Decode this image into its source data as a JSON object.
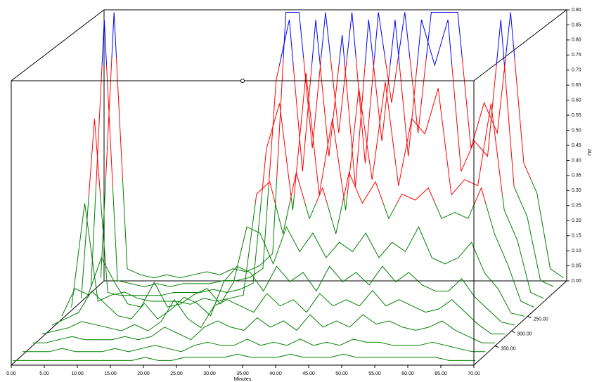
{
  "chart_data": {
    "type": "surface3d",
    "xlabel": "Minutes",
    "ylabel": "AU",
    "x": [
      0,
      2,
      4,
      6,
      8,
      10,
      12,
      14,
      16,
      18,
      20,
      22,
      24,
      26,
      28,
      30,
      32,
      34,
      36,
      38,
      40,
      42,
      44,
      46,
      48,
      50,
      52,
      54,
      56,
      58,
      60,
      62,
      64,
      66,
      68,
      70
    ],
    "xlim": [
      0,
      70
    ],
    "xticks": [
      {
        "value": 0,
        "label": "0.00"
      },
      {
        "value": 5,
        "label": "5.00"
      },
      {
        "value": 10,
        "label": "10.00"
      },
      {
        "value": 15,
        "label": "15.00"
      },
      {
        "value": 20,
        "label": "20.00"
      },
      {
        "value": 25,
        "label": "25.00"
      },
      {
        "value": 30,
        "label": "30.00"
      },
      {
        "value": 35,
        "label": "35.00"
      },
      {
        "value": 40,
        "label": "40.00"
      },
      {
        "value": 45,
        "label": "45.00"
      },
      {
        "value": 50,
        "label": "50.00"
      },
      {
        "value": 55,
        "label": "55.00"
      },
      {
        "value": 60,
        "label": "60.00"
      },
      {
        "value": 65,
        "label": "65.00"
      },
      {
        "value": 70,
        "label": "70.00"
      }
    ],
    "ylim": [
      0,
      0.9
    ],
    "yticks": [
      {
        "value": 0,
        "label": "0.00"
      },
      {
        "value": 0.05,
        "label": "0.05"
      },
      {
        "value": 0.1,
        "label": "0.10"
      },
      {
        "value": 0.15,
        "label": "0.15"
      },
      {
        "value": 0.2,
        "label": "0.20"
      },
      {
        "value": 0.25,
        "label": "0.25"
      },
      {
        "value": 0.3,
        "label": "0.30"
      },
      {
        "value": 0.35,
        "label": "0.35"
      },
      {
        "value": 0.4,
        "label": "0.40"
      },
      {
        "value": 0.45,
        "label": "0.45"
      },
      {
        "value": 0.5,
        "label": "0.50"
      },
      {
        "value": 0.55,
        "label": "0.55"
      },
      {
        "value": 0.6,
        "label": "0.60"
      },
      {
        "value": 0.65,
        "label": "0.65"
      },
      {
        "value": 0.7,
        "label": "0.70"
      },
      {
        "value": 0.75,
        "label": "0.75"
      },
      {
        "value": 0.8,
        "label": "0.80"
      },
      {
        "value": 0.85,
        "label": "0.85"
      },
      {
        "value": 0.9,
        "label": "0.90"
      }
    ],
    "zlim": [
      130,
      415
    ],
    "zticks": [
      {
        "value": 250,
        "label": "250.00"
      },
      {
        "value": 300,
        "label": "300.00"
      },
      {
        "value": 350,
        "label": "350.00"
      }
    ],
    "color_bands": [
      {
        "max": 0.35,
        "color": "#008000"
      },
      {
        "max": 0.75,
        "color": "#ff0000"
      },
      {
        "max": 0.9,
        "color": "#0000ff"
      }
    ],
    "series": [
      {
        "z": 140,
        "values": [
          0.02,
          0.9,
          0.05,
          0.03,
          0.02,
          0.03,
          0.02,
          0.03,
          0.04,
          0.03,
          0.05,
          0.04,
          0.06,
          0.1,
          0.9,
          0.9,
          0.45,
          0.9,
          0.5,
          0.9,
          0.4,
          0.9,
          0.6,
          0.9,
          0.5,
          0.9,
          0.9,
          0.9,
          0.45,
          0.6,
          0.5,
          0.9,
          0.4,
          0.3,
          0.05,
          0.02
        ]
      },
      {
        "z": 170,
        "values": [
          0.02,
          0.9,
          0.04,
          0.03,
          0.02,
          0.03,
          0.02,
          0.03,
          0.03,
          0.03,
          0.04,
          0.04,
          0.05,
          0.08,
          0.7,
          0.9,
          0.4,
          0.9,
          0.45,
          0.85,
          0.35,
          0.9,
          0.5,
          0.9,
          0.45,
          0.9,
          0.75,
          0.9,
          0.4,
          0.5,
          0.45,
          0.9,
          0.35,
          0.25,
          0.04,
          0.02
        ]
      },
      {
        "z": 200,
        "values": [
          0.01,
          0.6,
          0.03,
          0.02,
          0.02,
          0.02,
          0.02,
          0.03,
          0.03,
          0.03,
          0.04,
          0.03,
          0.04,
          0.06,
          0.5,
          0.65,
          0.3,
          0.75,
          0.35,
          0.6,
          0.3,
          0.7,
          0.4,
          0.72,
          0.38,
          0.6,
          0.55,
          0.7,
          0.35,
          0.4,
          0.38,
          0.65,
          0.3,
          0.2,
          0.03,
          0.01
        ]
      },
      {
        "z": 230,
        "values": [
          0.01,
          0.35,
          0.03,
          0.05,
          0.06,
          0.04,
          0.03,
          0.03,
          0.03,
          0.02,
          0.04,
          0.03,
          0.04,
          0.05,
          0.38,
          0.42,
          0.25,
          0.45,
          0.3,
          0.4,
          0.25,
          0.45,
          0.35,
          0.42,
          0.3,
          0.38,
          0.36,
          0.4,
          0.3,
          0.32,
          0.3,
          0.4,
          0.25,
          0.15,
          0.03,
          0.01
        ]
      },
      {
        "z": 260,
        "values": [
          0.01,
          0.1,
          0.08,
          0.2,
          0.12,
          0.05,
          0.04,
          0.12,
          0.04,
          0.05,
          0.08,
          0.1,
          0.05,
          0.12,
          0.3,
          0.28,
          0.18,
          0.3,
          0.22,
          0.28,
          0.2,
          0.25,
          0.22,
          0.28,
          0.2,
          0.25,
          0.22,
          0.3,
          0.2,
          0.18,
          0.2,
          0.25,
          0.15,
          0.1,
          0.02,
          0.01
        ]
      },
      {
        "z": 290,
        "values": [
          0.01,
          0.03,
          0.05,
          0.12,
          0.08,
          0.04,
          0.03,
          0.08,
          0.03,
          0.06,
          0.1,
          0.08,
          0.04,
          0.15,
          0.2,
          0.18,
          0.12,
          0.2,
          0.15,
          0.18,
          0.12,
          0.2,
          0.15,
          0.18,
          0.14,
          0.2,
          0.15,
          0.18,
          0.14,
          0.12,
          0.12,
          0.16,
          0.1,
          0.06,
          0.02,
          0.01
        ]
      },
      {
        "z": 320,
        "values": [
          0.01,
          0.02,
          0.03,
          0.05,
          0.04,
          0.03,
          0.02,
          0.04,
          0.02,
          0.05,
          0.12,
          0.06,
          0.03,
          0.1,
          0.12,
          0.1,
          0.08,
          0.14,
          0.1,
          0.12,
          0.08,
          0.14,
          0.1,
          0.12,
          0.1,
          0.15,
          0.1,
          0.12,
          0.1,
          0.08,
          0.09,
          0.12,
          0.08,
          0.04,
          0.01,
          0.01
        ]
      },
      {
        "z": 350,
        "values": [
          0.01,
          0.01,
          0.02,
          0.03,
          0.02,
          0.02,
          0.02,
          0.03,
          0.02,
          0.03,
          0.06,
          0.04,
          0.02,
          0.06,
          0.08,
          0.06,
          0.05,
          0.09,
          0.06,
          0.08,
          0.05,
          0.1,
          0.06,
          0.08,
          0.06,
          0.1,
          0.07,
          0.08,
          0.06,
          0.05,
          0.06,
          0.08,
          0.05,
          0.03,
          0.01,
          0.01
        ]
      },
      {
        "z": 380,
        "values": [
          0.01,
          0.01,
          0.01,
          0.02,
          0.01,
          0.01,
          0.01,
          0.02,
          0.01,
          0.02,
          0.03,
          0.02,
          0.01,
          0.03,
          0.04,
          0.03,
          0.03,
          0.05,
          0.03,
          0.04,
          0.03,
          0.05,
          0.03,
          0.04,
          0.03,
          0.05,
          0.04,
          0.04,
          0.03,
          0.03,
          0.03,
          0.04,
          0.03,
          0.02,
          0.01,
          0.01
        ]
      },
      {
        "z": 410,
        "values": [
          0.01,
          0.01,
          0.01,
          0.01,
          0.01,
          0.01,
          0.01,
          0.01,
          0.01,
          0.01,
          0.02,
          0.01,
          0.01,
          0.02,
          0.02,
          0.02,
          0.02,
          0.03,
          0.02,
          0.02,
          0.02,
          0.03,
          0.02,
          0.02,
          0.02,
          0.03,
          0.02,
          0.02,
          0.02,
          0.02,
          0.02,
          0.02,
          0.02,
          0.01,
          0.01,
          0.01
        ]
      }
    ]
  }
}
